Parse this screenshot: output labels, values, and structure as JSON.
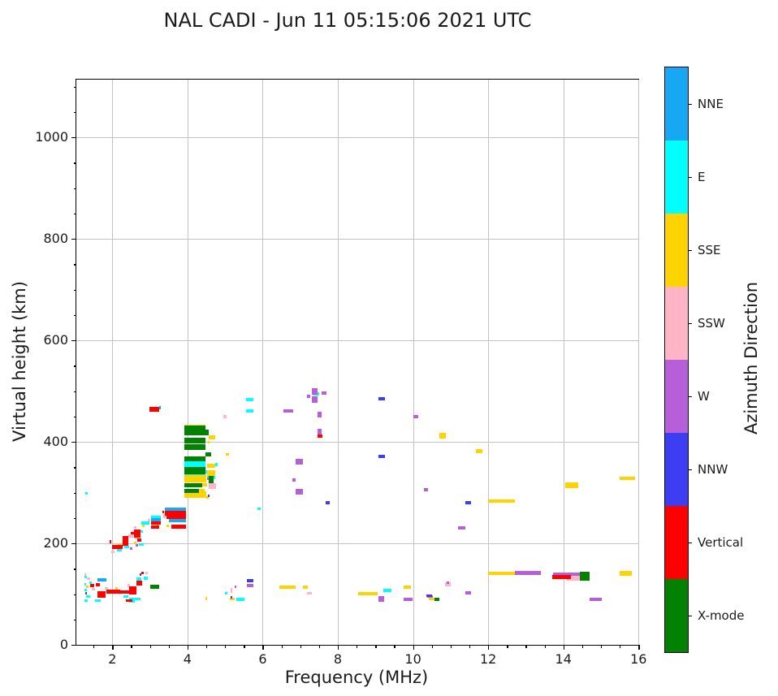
{
  "title": "NAL CADI - Jun 11 05:15:06 2021 UTC",
  "chart_data": {
    "type": "scatter",
    "title": "NAL CADI - Jun 11 05:15:06 2021 UTC",
    "xlabel": "Frequency (MHz)",
    "ylabel": "Virtual height (km)",
    "xlim": [
      1.06,
      16
    ],
    "ylim": [
      0,
      1114
    ],
    "xticks": [
      2,
      4,
      6,
      8,
      10,
      12,
      14,
      16
    ],
    "yticks": [
      0,
      200,
      400,
      600,
      800,
      1000
    ],
    "x_minor_step": 0.5,
    "y_minor_step": 50,
    "grid": true,
    "marker": "horizontal-dash",
    "legend_position": "right-colorbar",
    "colorbar": {
      "label": "Azimuth Direction",
      "categories": [
        {
          "label": "NNE",
          "color": "#18a7f2"
        },
        {
          "label": "E",
          "color": "#00ffff"
        },
        {
          "label": "SSE",
          "color": "#ffd300"
        },
        {
          "label": "SSW",
          "color": "#ffb5c5"
        },
        {
          "label": "W",
          "color": "#b65fd8"
        },
        {
          "label": "NNW",
          "color": "#3d3df2"
        },
        {
          "label": "Vertical",
          "color": "#fe0000"
        },
        {
          "label": "X-mode",
          "color": "#038103"
        }
      ]
    },
    "series": [
      {
        "name": "NNE",
        "color": "#18a7f2",
        "segments": [
          [
            1.6,
            1.84,
            128,
            4
          ],
          [
            3.02,
            3.3,
            247,
            4
          ],
          [
            3.4,
            3.95,
            267,
            4
          ],
          [
            3.5,
            3.95,
            245,
            4
          ],
          [
            3.24,
            3.29,
            468,
            4
          ]
        ]
      },
      {
        "name": "E",
        "color": "#00ffff",
        "segments": [
          [
            1.25,
            1.32,
            133,
            3
          ],
          [
            1.25,
            1.3,
            120,
            3
          ],
          [
            1.25,
            1.32,
            108,
            3
          ],
          [
            1.3,
            1.42,
            96,
            3
          ],
          [
            1.25,
            1.35,
            88,
            3
          ],
          [
            1.38,
            1.45,
            122,
            3
          ],
          [
            1.55,
            1.7,
            88,
            3
          ],
          [
            2.3,
            2.43,
            95,
            3
          ],
          [
            2.45,
            2.6,
            86,
            3
          ],
          [
            2.45,
            2.75,
            91,
            3
          ],
          [
            2.64,
            2.78,
            129,
            4
          ],
          [
            2.83,
            2.95,
            132,
            4
          ],
          [
            1.28,
            1.34,
            298,
            3
          ],
          [
            2.12,
            2.25,
            186,
            3
          ],
          [
            2.32,
            2.45,
            193,
            3
          ],
          [
            2.75,
            2.8,
            224,
            3
          ],
          [
            2.7,
            2.83,
            198,
            3
          ],
          [
            2.77,
            2.99,
            240,
            4
          ],
          [
            3.02,
            3.3,
            252,
            3
          ],
          [
            3.92,
            4.48,
            356,
            7
          ],
          [
            4.73,
            4.8,
            355,
            4
          ],
          [
            4.48,
            4.56,
            341,
            4
          ],
          [
            3.92,
            4.48,
            334,
            4
          ],
          [
            4.52,
            4.73,
            330,
            4
          ],
          [
            5.55,
            5.76,
            483,
            4
          ],
          [
            5.55,
            5.76,
            461,
            4
          ],
          [
            5.87,
            5.95,
            268,
            3
          ],
          [
            5.0,
            5.06,
            102,
            3
          ],
          [
            5.3,
            5.52,
            90,
            4
          ],
          [
            9.2,
            9.42,
            108,
            4
          ],
          [
            7.33,
            7.5,
            494,
            4
          ]
        ]
      },
      {
        "name": "SSE",
        "color": "#ffd300",
        "segments": [
          [
            1.3,
            1.36,
            114,
            3
          ],
          [
            2.08,
            2.14,
            112,
            3
          ],
          [
            2.15,
            2.24,
            198,
            3
          ],
          [
            2.57,
            2.65,
            201,
            3
          ],
          [
            2.8,
            2.84,
            234,
            3
          ],
          [
            3.18,
            3.22,
            234,
            3
          ],
          [
            3.45,
            3.5,
            234,
            3
          ],
          [
            4.47,
            4.52,
            92,
            4
          ],
          [
            3.92,
            4.48,
            432,
            3
          ],
          [
            4.56,
            4.73,
            409,
            5
          ],
          [
            4.54,
            4.58,
            400,
            3
          ],
          [
            5.02,
            5.1,
            376,
            3
          ],
          [
            4.52,
            4.73,
            353,
            5
          ],
          [
            4.52,
            4.73,
            339,
            7
          ],
          [
            3.92,
            4.5,
            327,
            9
          ],
          [
            4.4,
            4.52,
            315,
            4
          ],
          [
            4.3,
            4.45,
            304,
            4
          ],
          [
            3.92,
            4.5,
            296,
            8
          ],
          [
            4.5,
            4.54,
            290,
            3
          ],
          [
            5.12,
            5.25,
            91,
            3
          ],
          [
            6.45,
            6.87,
            114,
            4
          ],
          [
            7.07,
            7.2,
            114,
            4
          ],
          [
            8.53,
            9.06,
            101,
            4
          ],
          [
            9.76,
            9.94,
            114,
            4
          ],
          [
            10.42,
            10.58,
            91,
            3
          ],
          [
            10.7,
            10.88,
            412,
            7
          ],
          [
            11.67,
            11.84,
            381,
            5
          ],
          [
            12.0,
            12.7,
            283,
            4
          ],
          [
            12.0,
            12.7,
            141,
            4
          ],
          [
            14.05,
            14.4,
            314,
            7
          ],
          [
            15.5,
            15.9,
            328,
            4
          ],
          [
            15.5,
            15.83,
            141,
            6
          ]
        ]
      },
      {
        "name": "SSW",
        "color": "#ffb5c5",
        "segments": [
          [
            1.25,
            1.3,
            139,
            3
          ],
          [
            1.33,
            1.4,
            130,
            3
          ],
          [
            1.45,
            1.55,
            110,
            3
          ],
          [
            1.8,
            1.88,
            112,
            3
          ],
          [
            1.98,
            2.06,
            184,
            3
          ],
          [
            2.4,
            2.47,
            117,
            4
          ],
          [
            2.88,
            2.93,
            142,
            3
          ],
          [
            2.25,
            2.3,
            195,
            3
          ],
          [
            2.43,
            2.56,
            215,
            4
          ],
          [
            2.57,
            2.64,
            232,
            3
          ],
          [
            2.6,
            2.68,
            210,
            3
          ],
          [
            2.95,
            2.99,
            246,
            3
          ],
          [
            3.35,
            3.42,
            253,
            5
          ],
          [
            4.95,
            5.03,
            450,
            4
          ],
          [
            4.56,
            4.75,
            313,
            7
          ],
          [
            5.14,
            5.2,
            107,
            6
          ],
          [
            7.18,
            7.3,
            102,
            3
          ],
          [
            10.85,
            11.0,
            119,
            5
          ],
          [
            14.1,
            14.44,
            132,
            7
          ]
        ]
      },
      {
        "name": "W",
        "color": "#b65fd8",
        "segments": [
          [
            2.47,
            2.5,
            190,
            3
          ],
          [
            2.63,
            2.67,
            196,
            3
          ],
          [
            4.52,
            4.56,
            327,
            3
          ],
          [
            5.25,
            5.3,
            115,
            3
          ],
          [
            5.57,
            5.76,
            117,
            4
          ],
          [
            6.55,
            6.82,
            461,
            4
          ],
          [
            6.87,
            7.07,
            361,
            7
          ],
          [
            6.8,
            6.87,
            325,
            4
          ],
          [
            6.87,
            7.07,
            302,
            7
          ],
          [
            7.17,
            7.26,
            490,
            4
          ],
          [
            7.3,
            7.47,
            500,
            8
          ],
          [
            7.3,
            7.45,
            484,
            8
          ],
          [
            7.56,
            7.7,
            496,
            4
          ],
          [
            7.45,
            7.56,
            453,
            7
          ],
          [
            7.45,
            7.56,
            420,
            7
          ],
          [
            9.08,
            9.24,
            91,
            7
          ],
          [
            9.74,
            9.98,
            90,
            4
          ],
          [
            10.0,
            10.13,
            450,
            4
          ],
          [
            10.28,
            10.4,
            306,
            4
          ],
          [
            10.37,
            10.52,
            95,
            3
          ],
          [
            10.9,
            10.97,
            122,
            3
          ],
          [
            11.2,
            11.4,
            230,
            4
          ],
          [
            11.4,
            11.55,
            102,
            4
          ],
          [
            12.7,
            13.4,
            142,
            5
          ],
          [
            13.73,
            14.44,
            140,
            4
          ],
          [
            14.7,
            15.03,
            90,
            4
          ]
        ]
      },
      {
        "name": "NNW",
        "color": "#3d3df2",
        "segments": [
          [
            1.27,
            1.33,
            102,
            3
          ],
          [
            2.72,
            2.76,
            139,
            3
          ],
          [
            4.54,
            4.58,
            294,
            3
          ],
          [
            5.14,
            5.2,
            94,
            3
          ],
          [
            5.57,
            5.76,
            126,
            4
          ],
          [
            7.67,
            7.78,
            280,
            4
          ],
          [
            9.08,
            9.25,
            485,
            4
          ],
          [
            9.08,
            9.25,
            371,
            4
          ],
          [
            10.35,
            10.5,
            97,
            3
          ],
          [
            11.4,
            11.55,
            280,
            4
          ]
        ]
      },
      {
        "name": "Vertical",
        "color": "#fe0000",
        "segments": [
          [
            1.42,
            1.52,
            117,
            4
          ],
          [
            1.57,
            1.66,
            118,
            4
          ],
          [
            1.6,
            1.83,
            99,
            8
          ],
          [
            1.85,
            2.2,
            105,
            5
          ],
          [
            2.2,
            2.44,
            104,
            4
          ],
          [
            2.44,
            2.64,
            108,
            10
          ],
          [
            2.35,
            2.53,
            88,
            3
          ],
          [
            2.64,
            2.8,
            121,
            6
          ],
          [
            2.78,
            2.82,
            142,
            3
          ],
          [
            1.92,
            1.97,
            203,
            4
          ],
          [
            2.0,
            2.27,
            193,
            5
          ],
          [
            2.27,
            2.42,
            209,
            7
          ],
          [
            2.27,
            2.42,
            199,
            5
          ],
          [
            2.5,
            2.6,
            220,
            3
          ],
          [
            2.57,
            2.75,
            224,
            5
          ],
          [
            2.57,
            2.76,
            216,
            5
          ],
          [
            2.66,
            2.77,
            206,
            4
          ],
          [
            3.02,
            3.28,
            240,
            4
          ],
          [
            3.02,
            3.24,
            232,
            4
          ],
          [
            3.33,
            3.37,
            261,
            3
          ],
          [
            3.4,
            3.95,
            259,
            6
          ],
          [
            3.44,
            3.95,
            252,
            5
          ],
          [
            3.56,
            3.95,
            233,
            5
          ],
          [
            2.98,
            3.24,
            464,
            6
          ],
          [
            7.45,
            7.58,
            411,
            4
          ],
          [
            13.7,
            14.2,
            133,
            5
          ]
        ]
      },
      {
        "name": "X-mode",
        "color": "#038103",
        "segments": [
          [
            3.0,
            3.25,
            115,
            5
          ],
          [
            3.92,
            4.48,
            428,
            5
          ],
          [
            3.92,
            4.56,
            419,
            7
          ],
          [
            3.92,
            4.48,
            403,
            7
          ],
          [
            3.92,
            4.48,
            389,
            7
          ],
          [
            4.48,
            4.62,
            375,
            5
          ],
          [
            3.92,
            4.48,
            367,
            6
          ],
          [
            3.92,
            4.48,
            344,
            9
          ],
          [
            4.56,
            4.7,
            325,
            9
          ],
          [
            3.92,
            4.4,
            315,
            5
          ],
          [
            3.92,
            4.3,
            304,
            5
          ],
          [
            10.56,
            10.69,
            90,
            4
          ],
          [
            14.44,
            14.7,
            135,
            11
          ]
        ]
      }
    ]
  }
}
